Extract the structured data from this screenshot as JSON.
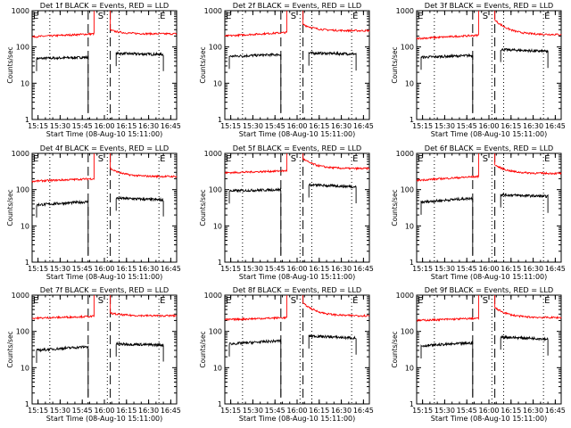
{
  "colors": {
    "events": "#000000",
    "lld": "#ff0000",
    "axis": "#000000"
  },
  "chart_data": [
    {
      "type": "line",
      "title": "Det 1f BLACK = Events, RED = LLD",
      "xlabel": "Start Time (08-Aug-10 15:11:00)",
      "ylabel": "Counts/sec",
      "x_ticks": [
        "15:15",
        "15:30",
        "15:45",
        "16:00",
        "16:15",
        "16:30",
        "16:45"
      ],
      "y_ticks": [
        "1",
        "10",
        "100",
        "1000"
      ],
      "y_scale": "log",
      "ylim": [
        1,
        1000
      ],
      "markers": [
        "E",
        "S",
        "E"
      ],
      "series": [
        {
          "segments": [
            {
              "t0": "15:14",
              "t1": "15:49",
              "v0": 48,
              "v1": 52
            },
            {
              "t0": "16:08",
              "t1": "16:40",
              "v0": 66,
              "v1": 62
            }
          ]
        },
        {
          "segments": [
            {
              "t0": "15:11",
              "t1": "15:53",
              "v0": 190,
              "v1": 230
            },
            {
              "t0": "16:04",
              "t1": "16:49",
              "v0": 290,
              "v1": 230
            }
          ]
        }
      ]
    },
    {
      "type": "line",
      "title": "Det 2f BLACK = Events, RED = LLD",
      "xlabel": "Start Time (08-Aug-10 15:11:00)",
      "ylabel": "Counts/sec",
      "x_ticks": [
        "15:15",
        "15:30",
        "15:45",
        "16:00",
        "16:15",
        "16:30",
        "16:45"
      ],
      "y_ticks": [
        "1",
        "10",
        "100",
        "1000"
      ],
      "y_scale": "log",
      "ylim": [
        1,
        1000
      ],
      "markers": [
        "E",
        "S",
        "E"
      ],
      "series": [
        {
          "segments": [
            {
              "t0": "15:14",
              "t1": "15:49",
              "v0": 55,
              "v1": 62
            },
            {
              "t0": "16:08",
              "t1": "16:40",
              "v0": 68,
              "v1": 64
            }
          ]
        },
        {
          "segments": [
            {
              "t0": "15:11",
              "t1": "15:53",
              "v0": 200,
              "v1": 250
            },
            {
              "t0": "16:04",
              "t1": "16:49",
              "v0": 420,
              "v1": 280
            }
          ]
        }
      ]
    },
    {
      "type": "line",
      "title": "Det 3f BLACK = Events, RED = LLD",
      "xlabel": "Start Time (08-Aug-10 15:11:00)",
      "ylabel": "Counts/sec",
      "x_ticks": [
        "15:15",
        "15:30",
        "15:45",
        "16:00",
        "16:15",
        "16:30",
        "16:45"
      ],
      "y_ticks": [
        "1",
        "10",
        "100",
        "1000"
      ],
      "y_scale": "log",
      "ylim": [
        1,
        1000
      ],
      "markers": [
        "E",
        "S",
        "E"
      ],
      "series": [
        {
          "segments": [
            {
              "t0": "15:14",
              "t1": "15:49",
              "v0": 52,
              "v1": 58
            },
            {
              "t0": "16:08",
              "t1": "16:40",
              "v0": 85,
              "v1": 75
            }
          ]
        },
        {
          "segments": [
            {
              "t0": "15:11",
              "t1": "15:53",
              "v0": 170,
              "v1": 210
            },
            {
              "t0": "16:04",
              "t1": "16:49",
              "v0": 550,
              "v1": 220
            }
          ]
        }
      ]
    },
    {
      "type": "line",
      "title": "Det 4f BLACK = Events, RED = LLD",
      "xlabel": "Start Time (08-Aug-10 15:11:00)",
      "ylabel": "Counts/sec",
      "x_ticks": [
        "15:15",
        "15:30",
        "15:45",
        "16:00",
        "16:15",
        "16:30",
        "16:45"
      ],
      "y_ticks": [
        "1",
        "10",
        "100",
        "1000"
      ],
      "y_scale": "log",
      "ylim": [
        1,
        1000
      ],
      "markers": [
        "E",
        "S",
        "E"
      ],
      "series": [
        {
          "segments": [
            {
              "t0": "15:14",
              "t1": "15:49",
              "v0": 38,
              "v1": 46
            },
            {
              "t0": "16:08",
              "t1": "16:40",
              "v0": 58,
              "v1": 52
            }
          ]
        },
        {
          "segments": [
            {
              "t0": "15:11",
              "t1": "15:53",
              "v0": 170,
              "v1": 200
            },
            {
              "t0": "16:04",
              "t1": "16:49",
              "v0": 380,
              "v1": 230
            }
          ]
        }
      ]
    },
    {
      "type": "line",
      "title": "Det 5f BLACK = Events, RED = LLD",
      "xlabel": "Start Time (08-Aug-10 15:11:00)",
      "ylabel": "Counts/sec",
      "x_ticks": [
        "15:15",
        "15:30",
        "15:45",
        "16:00",
        "16:15",
        "16:30",
        "16:45"
      ],
      "y_ticks": [
        "1",
        "10",
        "100",
        "1000"
      ],
      "y_scale": "log",
      "ylim": [
        1,
        1000
      ],
      "markers": [
        "E",
        "S",
        "E"
      ],
      "series": [
        {
          "segments": [
            {
              "t0": "15:14",
              "t1": "15:49",
              "v0": 92,
              "v1": 100
            },
            {
              "t0": "16:08",
              "t1": "16:40",
              "v0": 135,
              "v1": 120
            }
          ]
        },
        {
          "segments": [
            {
              "t0": "15:11",
              "t1": "15:53",
              "v0": 290,
              "v1": 330
            },
            {
              "t0": "16:04",
              "t1": "16:49",
              "v0": 700,
              "v1": 380
            }
          ]
        }
      ]
    },
    {
      "type": "line",
      "title": "Det 6f BLACK = Events, RED = LLD",
      "xlabel": "Start Time (08-Aug-10 15:11:00)",
      "ylabel": "Counts/sec",
      "x_ticks": [
        "15:15",
        "15:30",
        "15:45",
        "16:00",
        "16:15",
        "16:30",
        "16:45"
      ],
      "y_ticks": [
        "1",
        "10",
        "100",
        "1000"
      ],
      "y_scale": "log",
      "ylim": [
        1,
        1000
      ],
      "markers": [
        "E",
        "S",
        "E"
      ],
      "series": [
        {
          "segments": [
            {
              "t0": "15:14",
              "t1": "15:49",
              "v0": 45,
              "v1": 58
            },
            {
              "t0": "16:08",
              "t1": "16:40",
              "v0": 72,
              "v1": 65
            }
          ]
        },
        {
          "segments": [
            {
              "t0": "15:11",
              "t1": "15:53",
              "v0": 180,
              "v1": 230
            },
            {
              "t0": "16:04",
              "t1": "16:49",
              "v0": 480,
              "v1": 280
            }
          ]
        }
      ]
    },
    {
      "type": "line",
      "title": "Det 7f BLACK = Events, RED = LLD",
      "xlabel": "Start Time (08-Aug-10 15:11:00)",
      "ylabel": "Counts/sec",
      "x_ticks": [
        "15:15",
        "15:30",
        "15:45",
        "16:00",
        "16:15",
        "16:30",
        "16:45"
      ],
      "y_ticks": [
        "1",
        "10",
        "100",
        "1000"
      ],
      "y_scale": "log",
      "ylim": [
        1,
        1000
      ],
      "markers": [
        "E",
        "S",
        "E"
      ],
      "series": [
        {
          "segments": [
            {
              "t0": "15:14",
              "t1": "15:49",
              "v0": 30,
              "v1": 38
            },
            {
              "t0": "16:08",
              "t1": "16:40",
              "v0": 45,
              "v1": 42
            }
          ]
        },
        {
          "segments": [
            {
              "t0": "15:11",
              "t1": "15:53",
              "v0": 230,
              "v1": 260
            },
            {
              "t0": "16:04",
              "t1": "16:49",
              "v0": 320,
              "v1": 270
            }
          ]
        }
      ]
    },
    {
      "type": "line",
      "title": "Det 8f BLACK = Events, RED = LLD",
      "xlabel": "Start Time (08-Aug-10 15:11:00)",
      "ylabel": "Counts/sec",
      "x_ticks": [
        "15:15",
        "15:30",
        "15:45",
        "16:00",
        "16:15",
        "16:30",
        "16:45"
      ],
      "y_ticks": [
        "1",
        "10",
        "100",
        "1000"
      ],
      "y_scale": "log",
      "ylim": [
        1,
        1000
      ],
      "markers": [
        "E",
        "S",
        "E"
      ],
      "series": [
        {
          "segments": [
            {
              "t0": "15:14",
              "t1": "15:49",
              "v0": 45,
              "v1": 55
            },
            {
              "t0": "16:08",
              "t1": "16:40",
              "v0": 75,
              "v1": 65
            }
          ]
        },
        {
          "segments": [
            {
              "t0": "15:11",
              "t1": "15:53",
              "v0": 210,
              "v1": 240
            },
            {
              "t0": "16:04",
              "t1": "16:49",
              "v0": 600,
              "v1": 270
            }
          ]
        }
      ]
    },
    {
      "type": "line",
      "title": "Det 9f BLACK = Events, RED = LLD",
      "xlabel": "Start Time (08-Aug-10 15:11:00)",
      "ylabel": "Counts/sec",
      "x_ticks": [
        "15:15",
        "15:30",
        "15:45",
        "16:00",
        "16:15",
        "16:30",
        "16:45"
      ],
      "y_ticks": [
        "1",
        "10",
        "100",
        "1000"
      ],
      "y_scale": "log",
      "ylim": [
        1,
        1000
      ],
      "markers": [
        "E",
        "S",
        "E"
      ],
      "series": [
        {
          "segments": [
            {
              "t0": "15:14",
              "t1": "15:49",
              "v0": 40,
              "v1": 48
            },
            {
              "t0": "16:08",
              "t1": "16:40",
              "v0": 70,
              "v1": 62
            }
          ]
        },
        {
          "segments": [
            {
              "t0": "15:11",
              "t1": "15:53",
              "v0": 200,
              "v1": 230
            },
            {
              "t0": "16:04",
              "t1": "16:49",
              "v0": 450,
              "v1": 240
            }
          ]
        }
      ]
    }
  ]
}
